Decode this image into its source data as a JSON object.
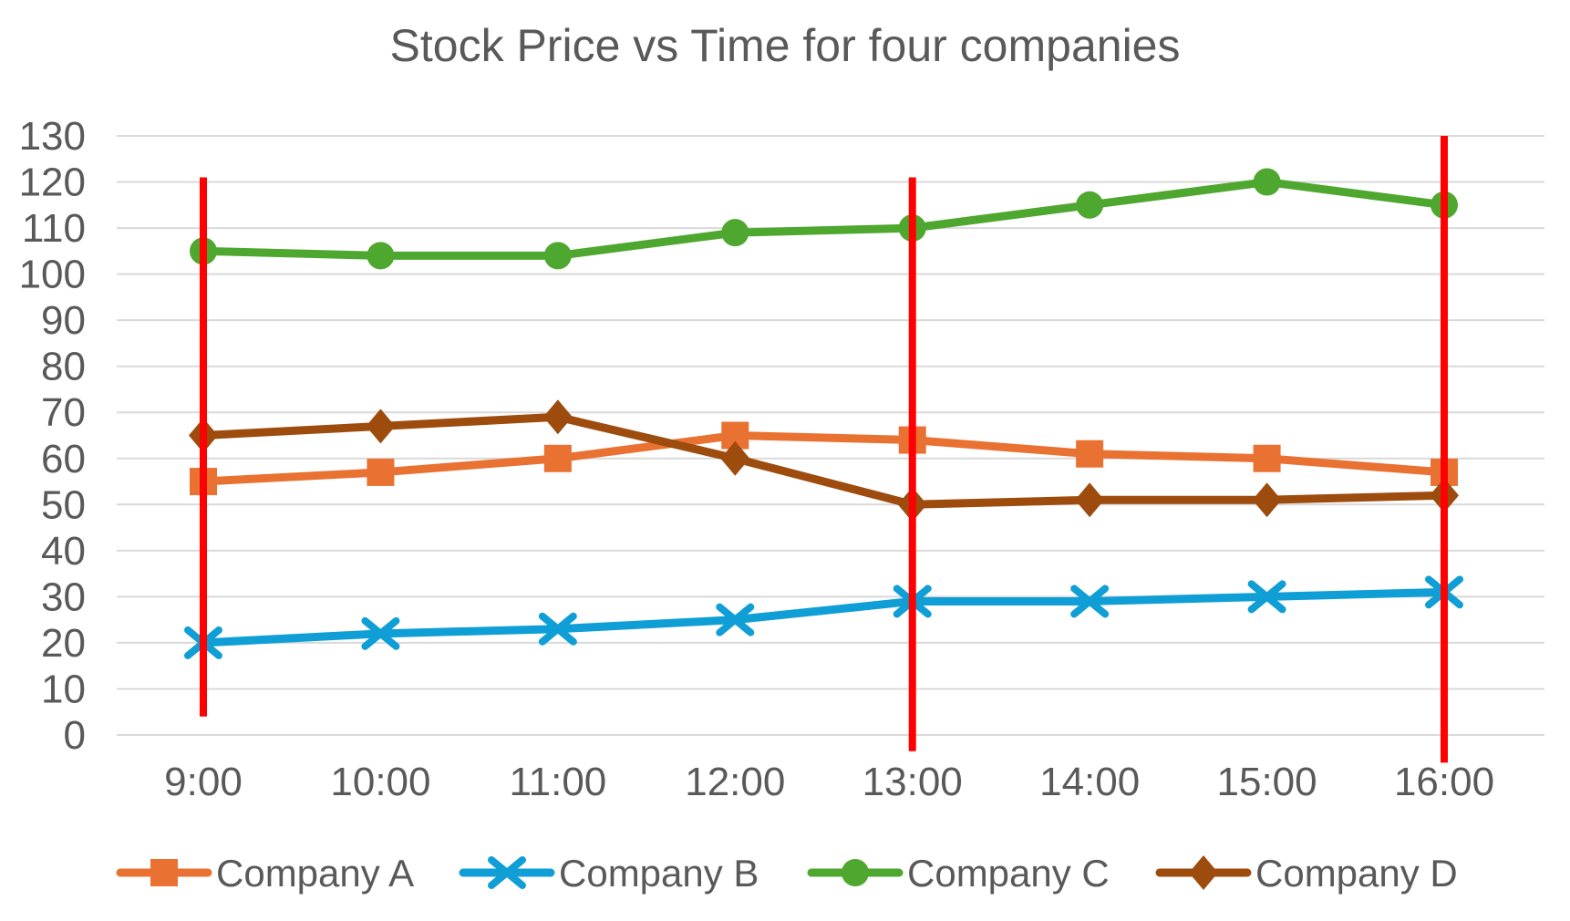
{
  "chart_data": {
    "type": "line",
    "title": "Stock Price vs Time for four companies",
    "categories": [
      "9:00",
      "10:00",
      "11:00",
      "12:00",
      "13:00",
      "14:00",
      "15:00",
      "16:00"
    ],
    "series": [
      {
        "name": "Company A",
        "marker": "square",
        "color": "#E97132",
        "values": [
          55,
          57,
          60,
          65,
          64,
          61,
          60,
          57
        ]
      },
      {
        "name": "Company B",
        "marker": "x",
        "color": "#0F9ED5",
        "values": [
          20,
          22,
          23,
          25,
          29,
          29,
          30,
          31
        ]
      },
      {
        "name": "Company C",
        "marker": "circle",
        "color": "#4EA72E",
        "values": [
          105,
          104,
          104,
          109,
          110,
          115,
          120,
          115
        ]
      },
      {
        "name": "Company D",
        "marker": "diamond",
        "color": "#9E4B0E",
        "values": [
          65,
          67,
          69,
          60,
          50,
          51,
          51,
          52
        ]
      }
    ],
    "vertical_lines": [
      {
        "at": "9:00",
        "from": 4,
        "to": 121,
        "color": "#FF0000"
      },
      {
        "at": "13:00",
        "from": -3.5,
        "to": 121,
        "color": "#FF0000"
      },
      {
        "at": "16:00",
        "from": -6,
        "to": 130,
        "color": "#FF0000"
      }
    ],
    "y_axis": {
      "min": 0,
      "max": 130,
      "step": 10,
      "tick_labels": [
        "0",
        "10",
        "20",
        "30",
        "40",
        "50",
        "60",
        "70",
        "80",
        "90",
        "100",
        "110",
        "120",
        "130"
      ]
    },
    "x_axis": {
      "tick_labels": [
        "9:00",
        "10:00",
        "11:00",
        "12:00",
        "13:00",
        "14:00",
        "15:00",
        "16:00"
      ]
    },
    "legend": {
      "position": "bottom",
      "entries": [
        "Company A",
        "Company B",
        "Company C",
        "Company D"
      ]
    },
    "style": {
      "gridline_color": "#D9D9D9",
      "text_color": "#595959",
      "background": "#FFFFFF",
      "grid_horizontal_only": true,
      "line_width": 9
    }
  }
}
